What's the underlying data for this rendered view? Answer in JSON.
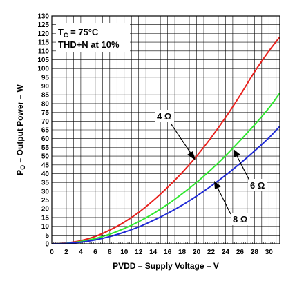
{
  "chart_data": {
    "type": "line",
    "xlabel": "PVDD – Supply Voltage – V",
    "ylabel_main": "P",
    "ylabel_sub": "O",
    "ylabel_rest": " – Output Power – W",
    "annotation_line1_main": "T",
    "annotation_line1_sub": "C",
    "annotation_line1_rest": " = 75°C",
    "annotation_line2": "THD+N at 10%",
    "xlim": [
      0,
      31.5
    ],
    "ylim": [
      0,
      130
    ],
    "x_ticks": [
      0,
      2,
      4,
      6,
      8,
      10,
      12,
      14,
      16,
      18,
      20,
      22,
      24,
      26,
      28,
      30
    ],
    "y_ticks": [
      0,
      5,
      10,
      15,
      20,
      25,
      30,
      35,
      40,
      45,
      50,
      55,
      60,
      65,
      70,
      75,
      80,
      85,
      90,
      95,
      100,
      105,
      110,
      115,
      120,
      125,
      130
    ],
    "grid": true,
    "series": [
      {
        "name": "4 Ω",
        "color": "#e8201c",
        "x": [
          0,
          2,
          4,
          6,
          8,
          10,
          12,
          14,
          16,
          18,
          20,
          22,
          24,
          26,
          28,
          30,
          31.5
        ],
        "y": [
          0,
          0.5,
          1.8,
          4.2,
          7.8,
          12.3,
          17.9,
          24.6,
          32.2,
          40.6,
          50.0,
          60.5,
          72.0,
          84.6,
          98.0,
          110.0,
          118.0
        ]
      },
      {
        "name": "6 Ω",
        "color": "#2ee82e",
        "x": [
          0,
          2,
          4,
          6,
          8,
          10,
          12,
          14,
          16,
          18,
          20,
          22,
          24,
          26,
          28,
          30,
          31.5
        ],
        "y": [
          0,
          0.3,
          1.3,
          3.0,
          5.5,
          8.7,
          12.6,
          17.2,
          22.5,
          28.5,
          35.0,
          42.3,
          50.2,
          58.8,
          67.8,
          77.5,
          86.0
        ]
      },
      {
        "name": "8 Ω",
        "color": "#1f2ad6",
        "x": [
          0,
          2,
          4,
          6,
          8,
          10,
          12,
          14,
          16,
          18,
          20,
          22,
          24,
          26,
          28,
          30,
          31.5
        ],
        "y": [
          0,
          0.2,
          0.9,
          2.2,
          4.1,
          6.6,
          9.6,
          13.3,
          17.4,
          22.0,
          27.2,
          32.9,
          39.1,
          45.8,
          52.9,
          60.5,
          67.0
        ]
      }
    ]
  }
}
